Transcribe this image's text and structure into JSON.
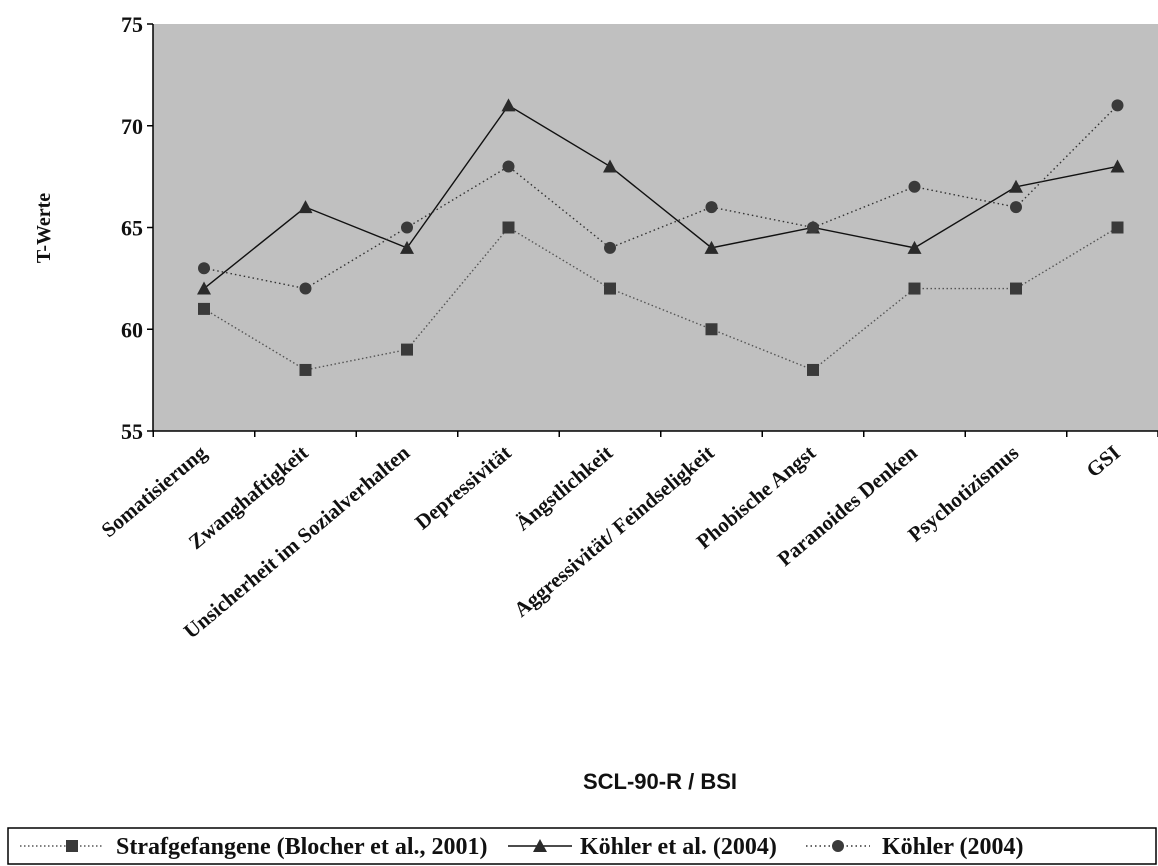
{
  "chart_data": {
    "type": "line",
    "title": "",
    "xlabel": "SCL-90-R / BSI",
    "ylabel": "T-Werte",
    "ylim": [
      55,
      75
    ],
    "yticks": [
      55,
      60,
      65,
      70,
      75
    ],
    "grid": false,
    "plot_background": "#c0c0c0",
    "legend_position": "bottom",
    "categories": [
      "Somatisierung",
      "Zwanghaftigkeit",
      "Unsicherheit im Sozialverhalten",
      "Depressivität",
      "Ängstlichkeit",
      "Aggressivität/ Feindseligkeit",
      "Phobische Angst",
      "Paranoides Denken",
      "Psychotizismus",
      "GSI"
    ],
    "series": [
      {
        "name": "Strafgefangene (Blocher et al., 2001)",
        "marker": "square",
        "line": "dotted",
        "values": [
          61,
          58,
          59,
          65,
          62,
          60,
          58,
          62,
          62,
          65
        ]
      },
      {
        "name": "Köhler et al. (2004)",
        "marker": "triangle",
        "line": "solid",
        "values": [
          62,
          66,
          64,
          71,
          68,
          64,
          65,
          64,
          67,
          68
        ]
      },
      {
        "name": "Köhler (2004)",
        "marker": "circle",
        "line": "dotted",
        "values": [
          63,
          62,
          65,
          68,
          64,
          66,
          65,
          67,
          66,
          71
        ]
      }
    ]
  }
}
